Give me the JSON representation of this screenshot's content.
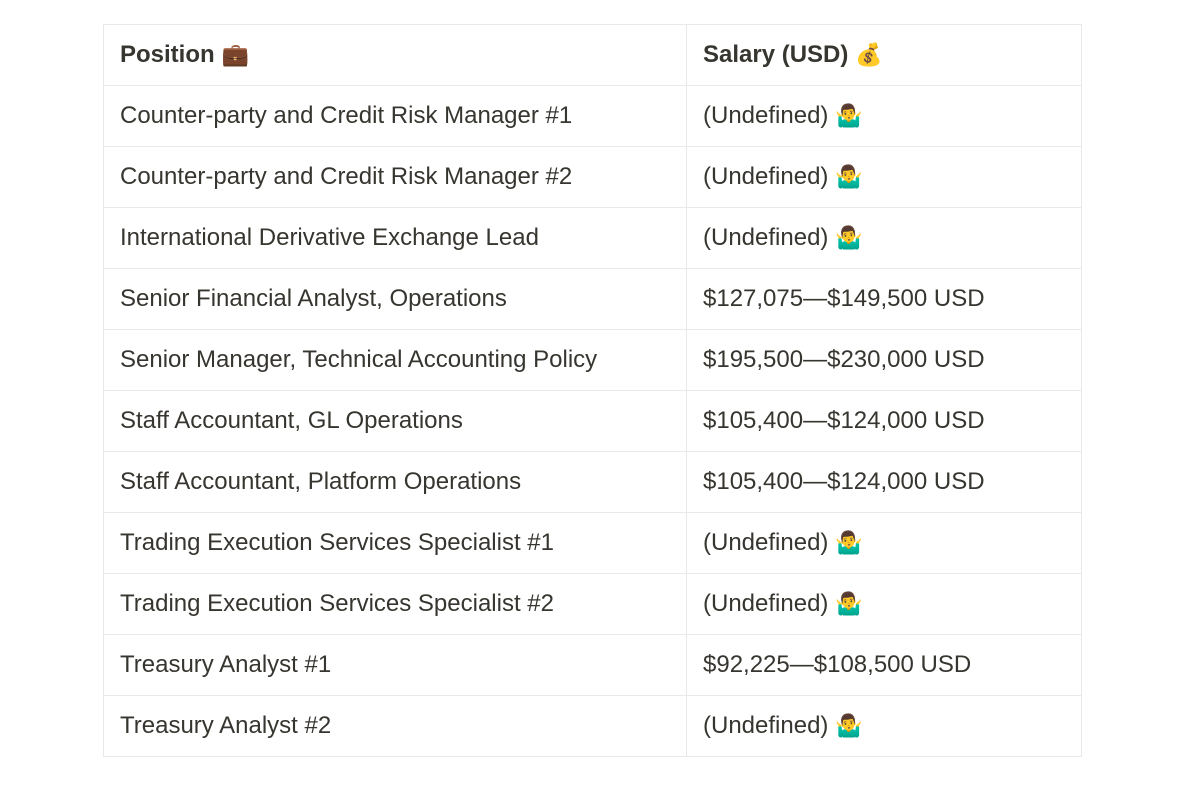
{
  "table": {
    "headers": {
      "position": "Position",
      "position_icon": "briefcase-icon",
      "salary": "Salary (USD)",
      "salary_icon": "money-bag-icon"
    },
    "rows": [
      {
        "position": "Counter-party and Credit Risk Manager #1",
        "salary": "(Undefined)",
        "salary_icon": "shrug-icon"
      },
      {
        "position": "Counter-party and Credit Risk Manager #2",
        "salary": "(Undefined)",
        "salary_icon": "shrug-icon"
      },
      {
        "position": "International Derivative Exchange Lead",
        "salary": "(Undefined)",
        "salary_icon": "shrug-icon"
      },
      {
        "position": "Senior Financial Analyst, Operations",
        "salary": "$127,075—$149,500 USD",
        "salary_icon": ""
      },
      {
        "position": "Senior Manager, Technical Accounting Policy",
        "salary": "$195,500—$230,000 USD",
        "salary_icon": ""
      },
      {
        "position": "Staff Accountant, GL Operations",
        "salary": "$105,400—$124,000 USD",
        "salary_icon": ""
      },
      {
        "position": "Staff Accountant, Platform Operations",
        "salary": "$105,400—$124,000 USD",
        "salary_icon": ""
      },
      {
        "position": "Trading Execution Services Specialist #1",
        "salary": "(Undefined)",
        "salary_icon": "shrug-icon"
      },
      {
        "position": "Trading Execution Services Specialist #2",
        "salary": "(Undefined)",
        "salary_icon": "shrug-icon"
      },
      {
        "position": "Treasury Analyst #1",
        "salary": "$92,225—$108,500 USD",
        "salary_icon": ""
      },
      {
        "position": "Treasury Analyst #2",
        "salary": "(Undefined)",
        "salary_icon": "shrug-icon"
      }
    ]
  }
}
